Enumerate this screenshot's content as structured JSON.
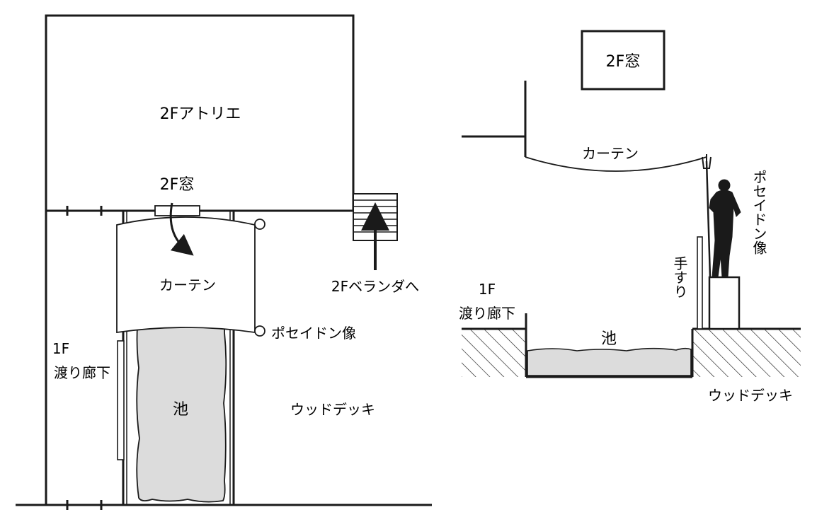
{
  "plan": {
    "atelier": "2Fアトリエ",
    "window": "2F窓",
    "curtain": "カーテン",
    "veranda": "2Fベランダへ",
    "poseidon": "ポセイドン像",
    "corridor_1f": "1F",
    "corridor": "渡り廊下",
    "pond": "池",
    "deck": "ウッドデッキ"
  },
  "section": {
    "window": "2F窓",
    "curtain": "カーテン",
    "poseidon": "ポセイドン像",
    "handrail": "手すり",
    "corridor_1f": "1F",
    "corridor": "渡り廊下",
    "pond": "池",
    "deck": "ウッドデッキ"
  },
  "colors": {
    "line": "#1a1a1a",
    "water": "#dcdcdc",
    "background": "#ffffff"
  }
}
